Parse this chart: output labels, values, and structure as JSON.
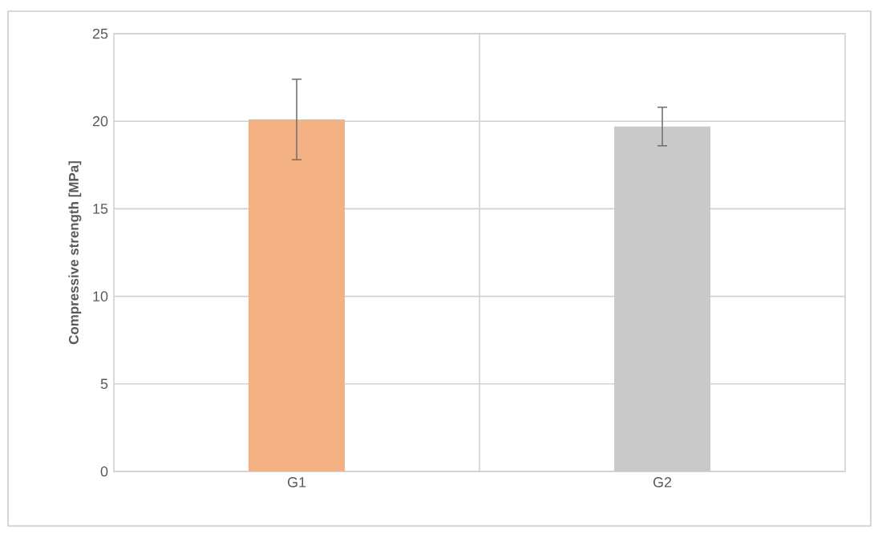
{
  "chart_data": {
    "type": "bar",
    "ylabel": "Compressive strength [MPa]",
    "categories": [
      "G1",
      "G2"
    ],
    "values": [
      20.1,
      19.7
    ],
    "errors": [
      2.3,
      1.1
    ],
    "colors": [
      "#f4b183",
      "#c9c9c9"
    ],
    "ylim": [
      0,
      25
    ],
    "yticks": [
      0,
      5,
      10,
      15,
      20,
      25
    ],
    "grid": true
  }
}
